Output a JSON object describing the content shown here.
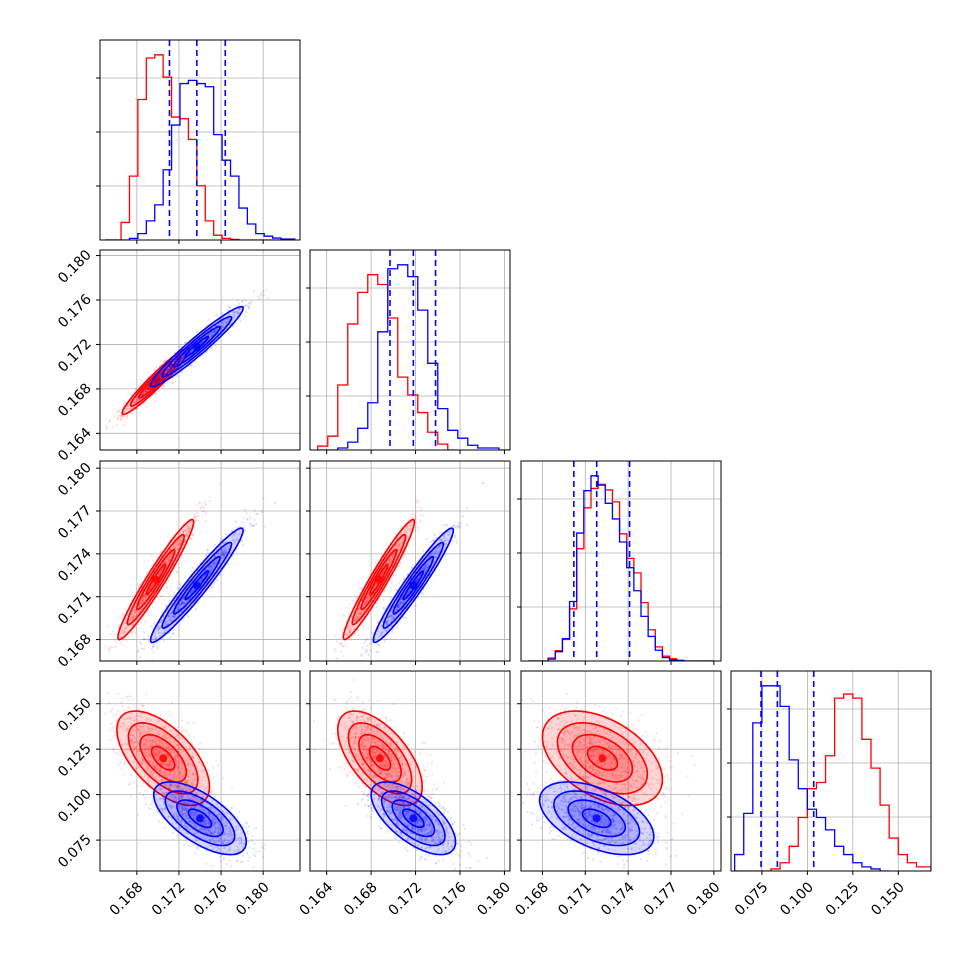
{
  "chart_data": {
    "type": "corner",
    "colors": {
      "series_a": "#ff0000",
      "series_b": "#0000ff",
      "grid": "#b0b0b0"
    },
    "series": [
      {
        "color": "series_a"
      },
      {
        "color": "series_b"
      }
    ],
    "grid": true,
    "axes": {
      "p1": {
        "lim": [
          0.1645,
          0.1835
        ],
        "ticks": [
          "0.168",
          "0.172",
          "0.176",
          "0.180"
        ]
      },
      "p2": {
        "lim": [
          0.1625,
          0.1805
        ],
        "ticks": [
          "0.164",
          "0.168",
          "0.172",
          "0.176",
          "0.180"
        ]
      },
      "p3": {
        "lim": [
          0.1665,
          0.1805
        ],
        "ticks": [
          "0.168",
          "0.171",
          "0.174",
          "0.177",
          "0.180"
        ]
      },
      "p4": {
        "lim": [
          0.058,
          0.168
        ],
        "ticks": [
          "0.075",
          "0.100",
          "0.125",
          "0.150"
        ]
      }
    },
    "histograms": [
      {
        "param": "p1",
        "series_a": {
          "edges": [
            0.165,
            0.1665,
            0.1673,
            0.1681,
            0.1689,
            0.1697,
            0.1705,
            0.1713,
            0.1721,
            0.1729,
            0.1737,
            0.1745,
            0.1753,
            0.1761,
            0.1769,
            0.1777,
            0.1785,
            0.183
          ],
          "counts": [
            0,
            55,
            200,
            440,
            570,
            580,
            510,
            385,
            380,
            315,
            170,
            60,
            15,
            5,
            2,
            0,
            0
          ]
        },
        "series_b": {
          "edges": [
            0.165,
            0.1665,
            0.1673,
            0.1681,
            0.1689,
            0.1697,
            0.1705,
            0.1713,
            0.1721,
            0.1729,
            0.1737,
            0.1745,
            0.1753,
            0.1761,
            0.1769,
            0.1777,
            0.1785,
            0.1793,
            0.1801,
            0.1809,
            0.1817,
            0.183
          ],
          "counts": [
            0,
            0,
            5,
            20,
            60,
            110,
            220,
            360,
            490,
            500,
            490,
            480,
            330,
            250,
            200,
            100,
            50,
            20,
            12,
            6,
            3
          ]
        },
        "quantiles": [
          0.1711,
          0.1737,
          0.1764
        ]
      },
      {
        "param": "p2",
        "series_a": {
          "edges": [
            0.1632,
            0.1641,
            0.165,
            0.1659,
            0.1668,
            0.1677,
            0.1686,
            0.1695,
            0.1704,
            0.1713,
            0.1722,
            0.1731,
            0.174,
            0.1749,
            0.1758
          ],
          "counts": [
            10,
            35,
            165,
            320,
            400,
            445,
            420,
            335,
            185,
            140,
            95,
            45,
            15,
            0
          ]
        },
        "series_b": {
          "edges": [
            0.1632,
            0.165,
            0.1659,
            0.1668,
            0.1677,
            0.1686,
            0.1695,
            0.1704,
            0.1713,
            0.1722,
            0.1731,
            0.174,
            0.1749,
            0.1758,
            0.1767,
            0.1776,
            0.1785,
            0.1795,
            0.1805
          ],
          "counts": [
            0,
            5,
            20,
            55,
            120,
            300,
            460,
            470,
            440,
            355,
            220,
            105,
            50,
            30,
            12,
            5,
            5,
            0
          ]
        },
        "quantiles": [
          0.1697,
          0.1718,
          0.1738
        ]
      },
      {
        "param": "p3",
        "series_a": {
          "edges": [
            0.167,
            0.1684,
            0.1689,
            0.1694,
            0.1699,
            0.1704,
            0.1709,
            0.1714,
            0.1719,
            0.1724,
            0.1729,
            0.1734,
            0.1739,
            0.1744,
            0.1749,
            0.1754,
            0.1759,
            0.1764,
            0.1769,
            0.1774,
            0.1779,
            0.18
          ],
          "counts": [
            0,
            8,
            28,
            58,
            140,
            302,
            412,
            464,
            475,
            460,
            428,
            342,
            276,
            237,
            157,
            84,
            38,
            13,
            6,
            2,
            0
          ]
        },
        "series_b": {
          "edges": [
            0.167,
            0.1684,
            0.1689,
            0.1694,
            0.1699,
            0.1704,
            0.1709,
            0.1714,
            0.1719,
            0.1724,
            0.1729,
            0.1734,
            0.1739,
            0.1744,
            0.1749,
            0.1754,
            0.1759,
            0.1764,
            0.1769,
            0.1774,
            0.1779,
            0.18
          ],
          "counts": [
            0,
            5,
            25,
            60,
            160,
            344,
            458,
            498,
            473,
            424,
            382,
            320,
            251,
            189,
            120,
            66,
            29,
            9,
            3,
            1,
            0
          ]
        },
        "quantiles": [
          0.1702,
          0.1718,
          0.1741
        ]
      },
      {
        "param": "p4",
        "series_a": {
          "edges": [
            0.06,
            0.08,
            0.085,
            0.09,
            0.095,
            0.1,
            0.105,
            0.11,
            0.115,
            0.12,
            0.125,
            0.13,
            0.135,
            0.14,
            0.145,
            0.15,
            0.155,
            0.16,
            0.168
          ],
          "counts": [
            0,
            5,
            20,
            60,
            130,
            200,
            215,
            280,
            420,
            430,
            420,
            320,
            250,
            160,
            80,
            40,
            20,
            10
          ]
        },
        "series_b": {
          "edges": [
            0.06,
            0.065,
            0.07,
            0.075,
            0.08,
            0.085,
            0.09,
            0.095,
            0.1,
            0.105,
            0.11,
            0.115,
            0.12,
            0.125,
            0.13,
            0.135,
            0.14,
            0.145
          ],
          "counts": [
            40,
            140,
            360,
            450,
            450,
            400,
            270,
            200,
            150,
            130,
            100,
            60,
            40,
            20,
            10,
            5,
            0
          ]
        },
        "quantiles": [
          0.0745,
          0.0835,
          0.1035
        ]
      }
    ],
    "pairs": [
      {
        "x": "p1",
        "y": "p2",
        "series_a": {
          "mean": [
            0.1698,
            0.1687
          ],
          "sd": [
            0.0016,
            0.0015
          ],
          "corr": 0.96
        },
        "series_b": {
          "mean": [
            0.1737,
            0.1718
          ],
          "sd": [
            0.0022,
            0.0018
          ],
          "corr": 0.96
        }
      },
      {
        "x": "p1",
        "y": "p3",
        "series_a": {
          "mean": [
            0.1698,
            0.1722
          ],
          "sd": [
            0.0018,
            0.0021
          ],
          "corr": 0.96
        },
        "series_b": {
          "mean": [
            0.1737,
            0.1718
          ],
          "sd": [
            0.0022,
            0.002
          ],
          "corr": 0.96
        }
      },
      {
        "x": "p2",
        "y": "p3",
        "series_a": {
          "mean": [
            0.1687,
            0.1722
          ],
          "sd": [
            0.0016,
            0.0021
          ],
          "corr": 0.96
        },
        "series_b": {
          "mean": [
            0.1718,
            0.1718
          ],
          "sd": [
            0.0018,
            0.002
          ],
          "corr": 0.96
        }
      },
      {
        "x": "p1",
        "y": "p4",
        "series_a": {
          "mean": [
            0.1705,
            0.12
          ],
          "sd": [
            0.0022,
            0.013
          ],
          "corr": -0.6
        },
        "series_b": {
          "mean": [
            0.174,
            0.087
          ],
          "sd": [
            0.0022,
            0.01
          ],
          "corr": -0.65
        }
      },
      {
        "x": "p2",
        "y": "p4",
        "series_a": {
          "mean": [
            0.1688,
            0.12
          ],
          "sd": [
            0.0019,
            0.013
          ],
          "corr": -0.6
        },
        "series_b": {
          "mean": [
            0.1718,
            0.087
          ],
          "sd": [
            0.0019,
            0.01
          ],
          "corr": -0.65
        }
      },
      {
        "x": "p3",
        "y": "p4",
        "series_a": {
          "mean": [
            0.1722,
            0.12
          ],
          "sd": [
            0.0021,
            0.013
          ],
          "corr": -0.45
        },
        "series_b": {
          "mean": [
            0.1718,
            0.087
          ],
          "sd": [
            0.002,
            0.01
          ],
          "corr": -0.5
        }
      }
    ]
  }
}
